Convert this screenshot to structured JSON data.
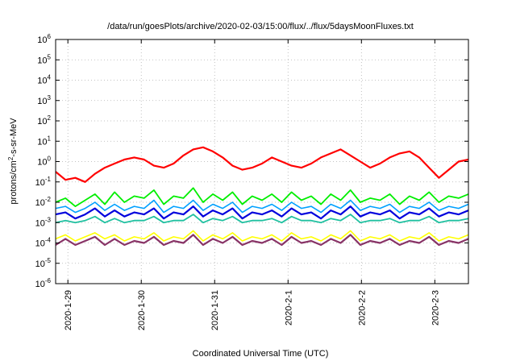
{
  "chart_data": {
    "type": "line",
    "title": "/data/run/goesPlots/archive/2020-02-03/15:00/flux/../flux/5daysMoonFluxes.txt",
    "xlabel": "Coordinated Universal Time (UTC)",
    "ylabel": {
      "base": "protons/cm",
      "sup": "2",
      "rest": "-s-sr-MeV"
    },
    "yscale": "log",
    "ylim_exponents": [
      -6,
      6
    ],
    "y_tick_exponents": [
      -6,
      -5,
      -4,
      -3,
      -2,
      -1,
      0,
      1,
      2,
      3,
      4,
      5,
      6
    ],
    "y_tick_base": "10",
    "xlim_days": [
      0,
      5.625
    ],
    "x_ticks": [
      {
        "label": "2020-1-29",
        "pos": 0.167
      },
      {
        "label": "2020-1-30",
        "pos": 1.167
      },
      {
        "label": "2020-1-31",
        "pos": 2.167
      },
      {
        "label": "2020-2-1",
        "pos": 3.167
      },
      {
        "label": "2020-2-2",
        "pos": 4.167
      },
      {
        "label": "2020-2-3",
        "pos": 5.167
      }
    ],
    "grid": true,
    "series": [
      {
        "color": "#ff0000",
        "width": 2.2,
        "log10_values": [
          -0.5,
          -0.9,
          -0.8,
          -1.0,
          -0.6,
          -0.3,
          -0.1,
          0.1,
          0.2,
          0.1,
          -0.2,
          -0.3,
          -0.1,
          0.3,
          0.6,
          0.7,
          0.5,
          0.2,
          -0.2,
          -0.4,
          -0.3,
          -0.1,
          0.2,
          0.0,
          -0.2,
          -0.3,
          -0.1,
          0.2,
          0.4,
          0.6,
          0.3,
          0.0,
          -0.3,
          -0.1,
          0.2,
          0.4,
          0.5,
          0.2,
          -0.3,
          -0.8,
          -0.4,
          0.0,
          0.1
        ]
      },
      {
        "color": "#00ee00",
        "width": 1.8,
        "log10_values": [
          -2.0,
          -1.8,
          -2.2,
          -1.9,
          -1.6,
          -2.1,
          -1.5,
          -2.0,
          -1.7,
          -1.8,
          -1.4,
          -2.1,
          -1.7,
          -1.8,
          -1.3,
          -2.0,
          -1.6,
          -1.9,
          -1.5,
          -2.1,
          -1.7,
          -1.9,
          -1.6,
          -2.0,
          -1.5,
          -1.9,
          -1.7,
          -2.1,
          -1.6,
          -1.9,
          -1.4,
          -2.0,
          -1.8,
          -1.9,
          -1.6,
          -2.1,
          -1.7,
          -1.9,
          -1.5,
          -2.0,
          -1.7,
          -1.8,
          -1.6
        ]
      },
      {
        "color": "#00a0ff",
        "width": 1.6,
        "log10_values": [
          -2.3,
          -2.2,
          -2.5,
          -2.3,
          -2.0,
          -2.4,
          -2.1,
          -2.4,
          -2.2,
          -2.3,
          -1.9,
          -2.5,
          -2.2,
          -2.3,
          -1.9,
          -2.4,
          -2.1,
          -2.3,
          -2.0,
          -2.5,
          -2.2,
          -2.3,
          -2.1,
          -2.4,
          -2.0,
          -2.3,
          -2.2,
          -2.5,
          -2.1,
          -2.3,
          -1.9,
          -2.4,
          -2.2,
          -2.3,
          -2.1,
          -2.5,
          -2.2,
          -2.3,
          -2.0,
          -2.4,
          -2.2,
          -2.3,
          -2.1
        ]
      },
      {
        "color": "#0000dd",
        "width": 2.2,
        "log10_values": [
          -2.6,
          -2.5,
          -2.8,
          -2.6,
          -2.3,
          -2.7,
          -2.4,
          -2.7,
          -2.5,
          -2.6,
          -2.3,
          -2.8,
          -2.5,
          -2.6,
          -2.2,
          -2.7,
          -2.4,
          -2.6,
          -2.3,
          -2.8,
          -2.5,
          -2.6,
          -2.4,
          -2.7,
          -2.3,
          -2.6,
          -2.5,
          -2.8,
          -2.4,
          -2.6,
          -2.2,
          -2.7,
          -2.5,
          -2.6,
          -2.4,
          -2.8,
          -2.5,
          -2.6,
          -2.3,
          -2.7,
          -2.5,
          -2.6,
          -2.4
        ]
      },
      {
        "color": "#20c0a0",
        "width": 1.8,
        "log10_values": [
          -3.0,
          -2.9,
          -3.0,
          -2.9,
          -2.7,
          -3.0,
          -2.8,
          -3.0,
          -2.9,
          -2.9,
          -2.7,
          -3.0,
          -2.9,
          -2.9,
          -2.6,
          -3.0,
          -2.8,
          -2.9,
          -2.7,
          -3.0,
          -2.9,
          -2.9,
          -2.8,
          -3.0,
          -2.7,
          -2.9,
          -2.9,
          -3.0,
          -2.8,
          -2.9,
          -2.6,
          -3.0,
          -2.9,
          -2.9,
          -2.8,
          -3.0,
          -2.9,
          -2.9,
          -2.7,
          -3.0,
          -2.9,
          -2.9,
          -2.8
        ]
      },
      {
        "color": "#ffff00",
        "width": 1.6,
        "log10_values": [
          -3.8,
          -3.6,
          -3.9,
          -3.7,
          -3.5,
          -3.8,
          -3.6,
          -3.9,
          -3.7,
          -3.8,
          -3.5,
          -3.9,
          -3.7,
          -3.8,
          -3.4,
          -3.9,
          -3.6,
          -3.8,
          -3.5,
          -3.9,
          -3.7,
          -3.8,
          -3.6,
          -3.9,
          -3.5,
          -3.8,
          -3.7,
          -3.9,
          -3.6,
          -3.8,
          -3.4,
          -3.9,
          -3.7,
          -3.8,
          -3.6,
          -3.9,
          -3.7,
          -3.8,
          -3.5,
          -3.9,
          -3.7,
          -3.8,
          -3.6
        ]
      },
      {
        "color": "#883366",
        "width": 2.2,
        "log10_values": [
          -4.1,
          -3.8,
          -4.1,
          -3.9,
          -3.7,
          -4.1,
          -3.8,
          -4.1,
          -3.9,
          -4.0,
          -3.7,
          -4.1,
          -3.9,
          -4.0,
          -3.6,
          -4.1,
          -3.8,
          -4.0,
          -3.7,
          -4.1,
          -3.9,
          -4.0,
          -3.8,
          -4.1,
          -3.7,
          -4.0,
          -3.9,
          -4.1,
          -3.8,
          -4.0,
          -3.6,
          -4.1,
          -3.9,
          -4.0,
          -3.8,
          -4.1,
          -3.9,
          -4.0,
          -3.7,
          -4.1,
          -3.9,
          -4.0,
          -3.8
        ]
      }
    ]
  }
}
